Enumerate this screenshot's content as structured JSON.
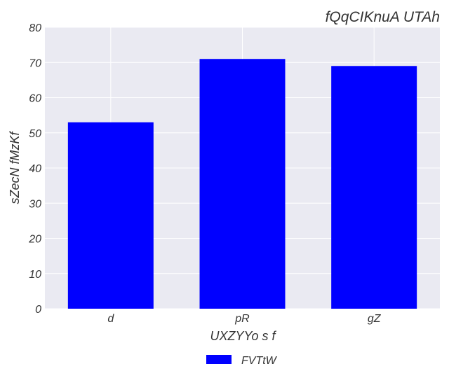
{
  "chart_data": {
    "type": "bar",
    "title": "fQqCIKnuA UTAh",
    "xlabel": "UXZYYo s f",
    "ylabel": "sZecN fMzKf",
    "categories": [
      "d",
      "pR",
      "gZ"
    ],
    "series": [
      {
        "name": "FVTtW",
        "values": [
          53,
          71,
          69
        ],
        "color": "#0000ff"
      }
    ],
    "ylim": [
      0,
      80
    ],
    "yticks": [
      0,
      10,
      20,
      30,
      40,
      50,
      60,
      70,
      80
    ],
    "grid": true,
    "legend_position": "bottom-center",
    "background_color": "#eaeaf2",
    "grid_color": "#ffffff"
  }
}
